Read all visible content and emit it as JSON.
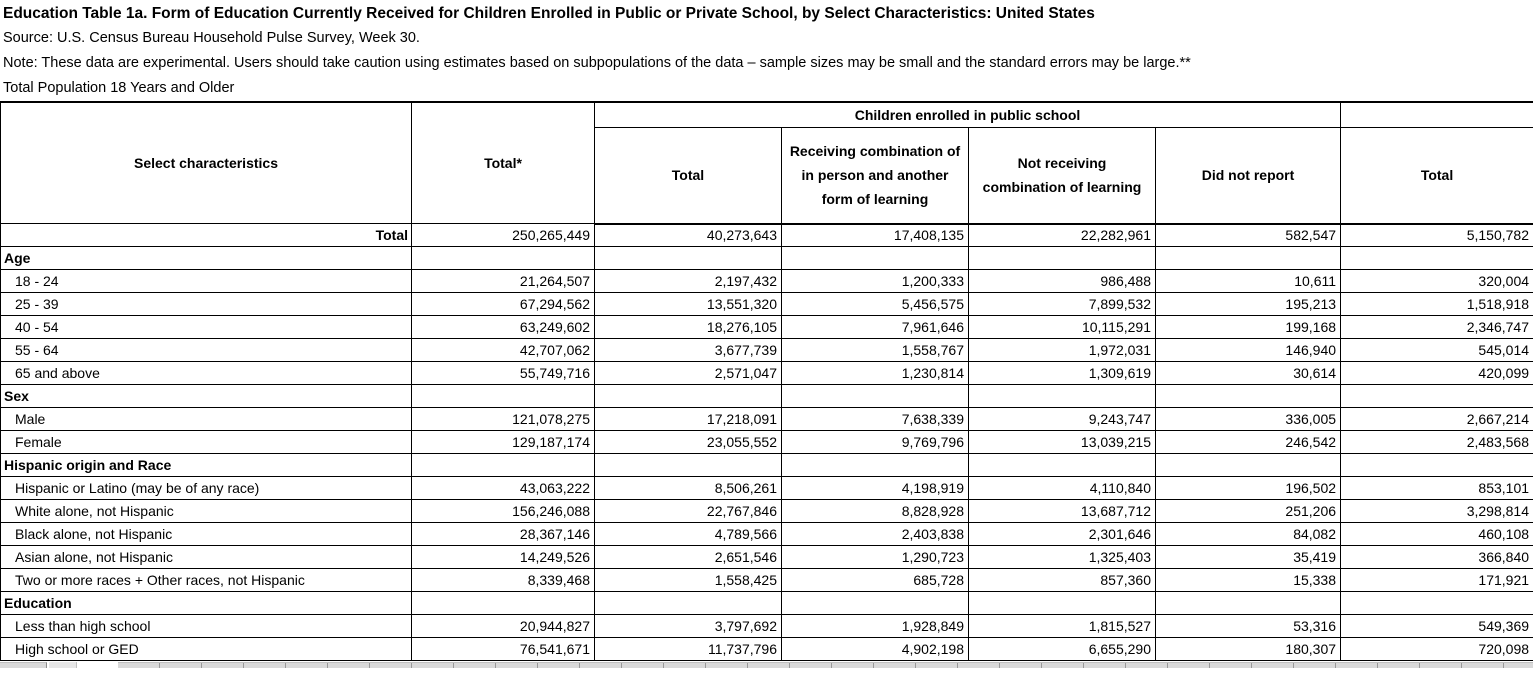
{
  "meta": {
    "title": "Education Table 1a. Form of Education Currently Received for Children Enrolled in Public or Private School, by Select Characteristics: United States",
    "source": "Source: U.S. Census Bureau Household Pulse Survey, Week 30.",
    "note": "Note: These data are experimental. Users should take caution using estimates based on subpopulations of the data – sample sizes may be small and the standard errors may be large.**",
    "population": "Total Population 18 Years and Older"
  },
  "colors": {
    "background": "#ffffff",
    "text": "#000000",
    "table_border": "#000000",
    "strip_gray": "#d9d9d9"
  },
  "table": {
    "col_group_header": "Children enrolled in public school",
    "columns": [
      "Select characteristics",
      "Total*",
      "Total",
      "Receiving combination of in person and another form of learning",
      "Not receiving combination of learning",
      "Did not report",
      "Total"
    ],
    "rows": [
      {
        "type": "total",
        "label": "Total",
        "values": [
          "250,265,449",
          "40,273,643",
          "17,408,135",
          "22,282,961",
          "582,547",
          "5,150,782"
        ]
      },
      {
        "type": "section",
        "label": "Age"
      },
      {
        "type": "data",
        "label": "18 - 24",
        "values": [
          "21,264,507",
          "2,197,432",
          "1,200,333",
          "986,488",
          "10,611",
          "320,004"
        ]
      },
      {
        "type": "data",
        "label": "25 - 39",
        "values": [
          "67,294,562",
          "13,551,320",
          "5,456,575",
          "7,899,532",
          "195,213",
          "1,518,918"
        ]
      },
      {
        "type": "data",
        "label": "40 - 54",
        "values": [
          "63,249,602",
          "18,276,105",
          "7,961,646",
          "10,115,291",
          "199,168",
          "2,346,747"
        ]
      },
      {
        "type": "data",
        "label": "55 - 64",
        "values": [
          "42,707,062",
          "3,677,739",
          "1,558,767",
          "1,972,031",
          "146,940",
          "545,014"
        ]
      },
      {
        "type": "data",
        "label": "65 and above",
        "values": [
          "55,749,716",
          "2,571,047",
          "1,230,814",
          "1,309,619",
          "30,614",
          "420,099"
        ]
      },
      {
        "type": "section",
        "label": "Sex"
      },
      {
        "type": "data",
        "label": "Male",
        "values": [
          "121,078,275",
          "17,218,091",
          "7,638,339",
          "9,243,747",
          "336,005",
          "2,667,214"
        ]
      },
      {
        "type": "data",
        "label": "Female",
        "values": [
          "129,187,174",
          "23,055,552",
          "9,769,796",
          "13,039,215",
          "246,542",
          "2,483,568"
        ]
      },
      {
        "type": "section",
        "label": "Hispanic origin and Race"
      },
      {
        "type": "data",
        "label": "Hispanic or Latino (may be of any race)",
        "values": [
          "43,063,222",
          "8,506,261",
          "4,198,919",
          "4,110,840",
          "196,502",
          "853,101"
        ]
      },
      {
        "type": "data",
        "label": "White alone, not Hispanic",
        "values": [
          "156,246,088",
          "22,767,846",
          "8,828,928",
          "13,687,712",
          "251,206",
          "3,298,814"
        ]
      },
      {
        "type": "data",
        "label": "Black alone, not Hispanic",
        "values": [
          "28,367,146",
          "4,789,566",
          "2,403,838",
          "2,301,646",
          "84,082",
          "460,108"
        ]
      },
      {
        "type": "data",
        "label": "Asian alone, not Hispanic",
        "values": [
          "14,249,526",
          "2,651,546",
          "1,290,723",
          "1,325,403",
          "35,419",
          "366,840"
        ]
      },
      {
        "type": "data",
        "label": "Two or more races + Other races, not Hispanic",
        "values": [
          "8,339,468",
          "1,558,425",
          "685,728",
          "857,360",
          "15,338",
          "171,921"
        ]
      },
      {
        "type": "section",
        "label": "Education"
      },
      {
        "type": "data",
        "label": "Less than high school",
        "values": [
          "20,944,827",
          "3,797,692",
          "1,928,849",
          "1,815,527",
          "53,316",
          "549,369"
        ]
      },
      {
        "type": "data",
        "label": "High school or GED",
        "values": [
          "76,541,671",
          "11,737,796",
          "4,902,198",
          "6,655,290",
          "180,307",
          "720,098"
        ]
      }
    ]
  }
}
